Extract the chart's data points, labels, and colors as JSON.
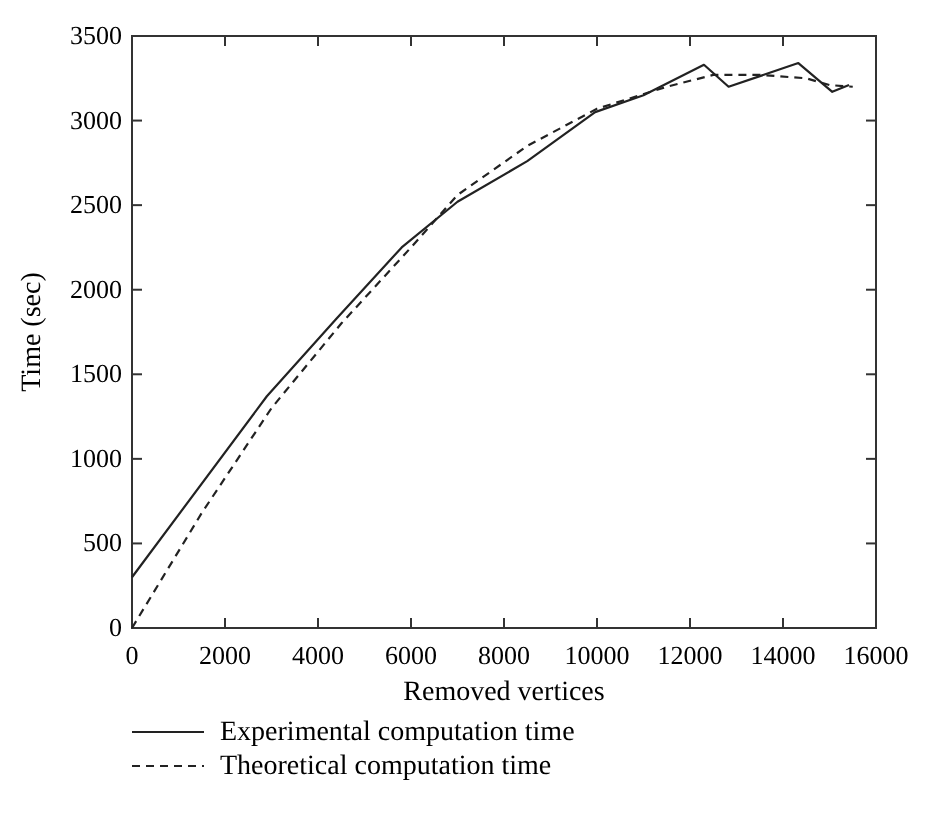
{
  "chart_data": {
    "type": "line",
    "xlabel": "Removed vertices",
    "ylabel": "Time (sec)",
    "xlim": [
      0,
      16000
    ],
    "xticks": [
      0,
      2000,
      4000,
      6000,
      8000,
      10000,
      12000,
      14000,
      16000
    ],
    "ylim": [
      0,
      3500
    ],
    "yticks": [
      0,
      500,
      1000,
      1500,
      2000,
      2500,
      3000,
      3500
    ],
    "grid": false,
    "legend": "bottom",
    "marker": "none",
    "series": [
      {
        "name": "Experimental computation time",
        "color": "#222222",
        "line_style": "solid",
        "x": [
          0,
          2900,
          4400,
          5800,
          7000,
          8500,
          9960,
          11000,
          12300,
          12830,
          14330,
          15060,
          15420
        ],
        "values": [
          300,
          1370,
          1830,
          2250,
          2520,
          2760,
          3050,
          3150,
          3330,
          3200,
          3340,
          3170,
          3210
        ]
      },
      {
        "name": "Theoretical computation time",
        "color": "#222222",
        "line_style": "dashed",
        "x": [
          0,
          1500,
          3000,
          4500,
          6000,
          7000,
          8500,
          10000,
          11500,
          12500,
          13500,
          14500,
          15000,
          15500
        ],
        "values": [
          0,
          680,
          1300,
          1800,
          2250,
          2560,
          2850,
          3070,
          3200,
          3270,
          3270,
          3250,
          3210,
          3200
        ]
      }
    ]
  }
}
